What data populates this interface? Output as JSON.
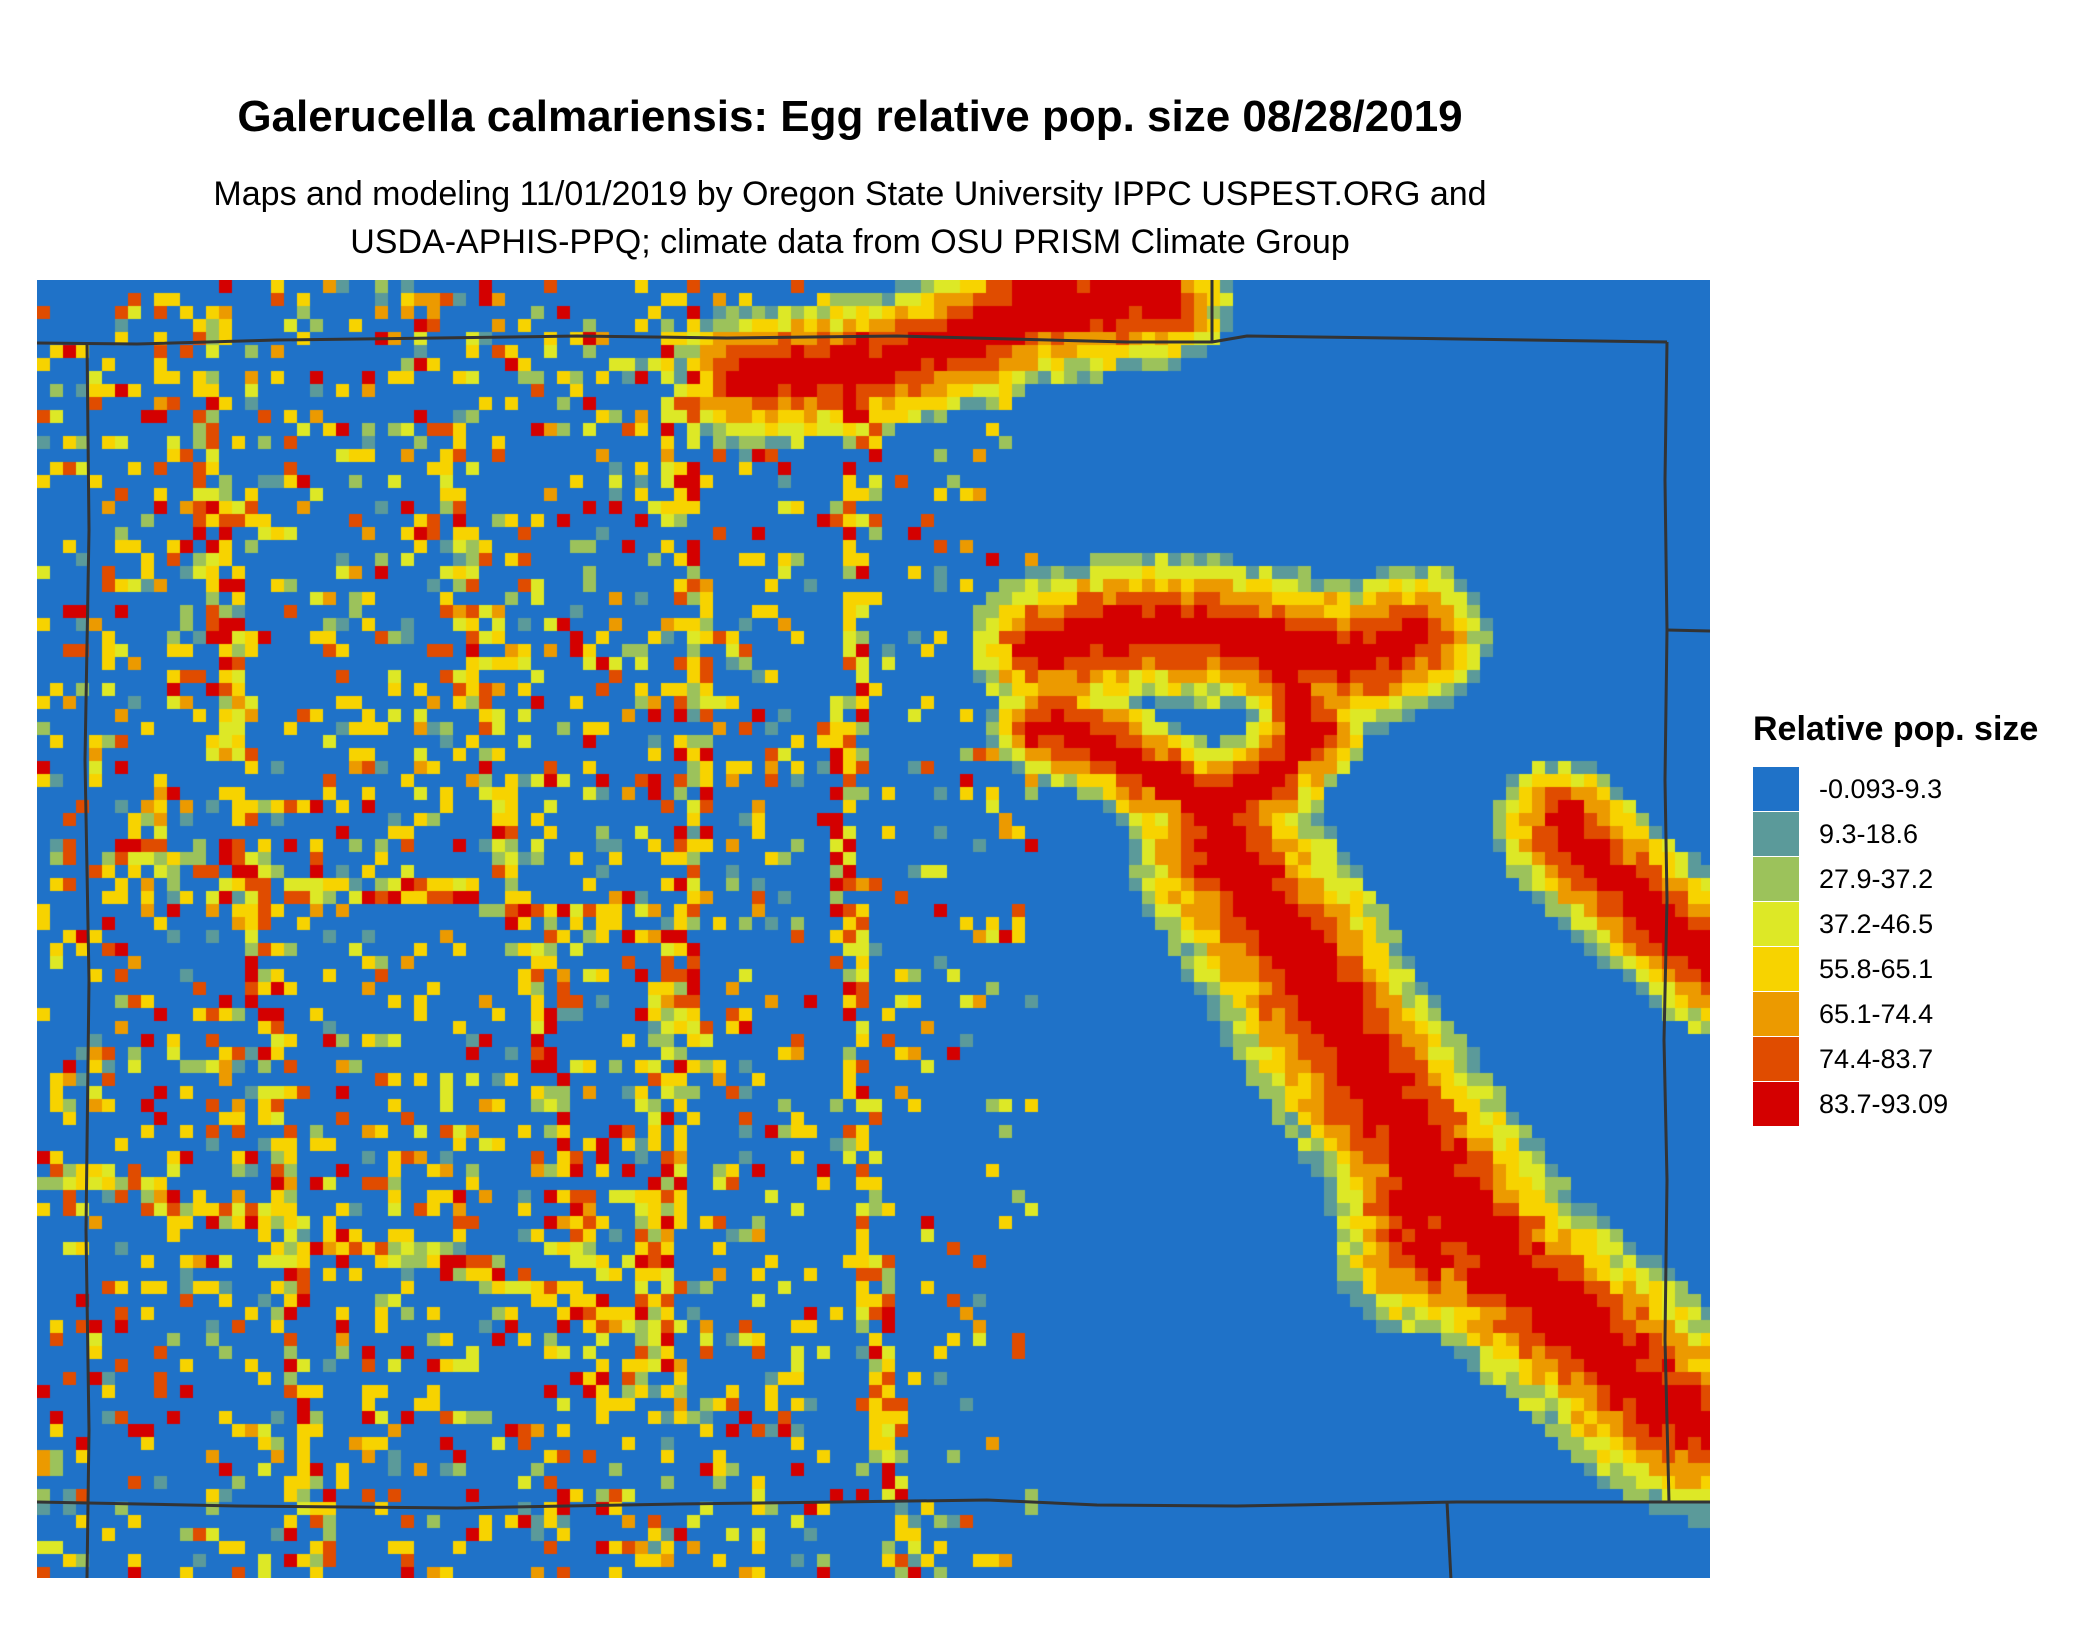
{
  "title": "Galerucella calmariensis: Egg relative pop. size 08/28/2019",
  "subtitle_lines": [
    "Maps and modeling 11/01/2019 by Oregon State University IPPC USPEST.ORG and",
    "USDA-APHIS-PPQ; climate data from OSU PRISM Climate Group"
  ],
  "legend": {
    "title": "Relative pop. size",
    "items": [
      {
        "label": "-0.093-9.3",
        "color": "#1f72c8"
      },
      {
        "label": "9.3-18.6",
        "color": "#5b9a9a"
      },
      {
        "label": "27.9-37.2",
        "color": "#9cc25b"
      },
      {
        "label": "37.2-46.5",
        "color": "#dde826"
      },
      {
        "label": "55.8-65.1",
        "color": "#f7d300"
      },
      {
        "label": "65.1-74.4",
        "color": "#ec9a00"
      },
      {
        "label": "74.4-83.7",
        "color": "#e04c00"
      },
      {
        "label": "83.7-93.09",
        "color": "#d40000"
      }
    ]
  },
  "map": {
    "background_color": "#1f72c8",
    "border_color": "#333333"
  }
}
